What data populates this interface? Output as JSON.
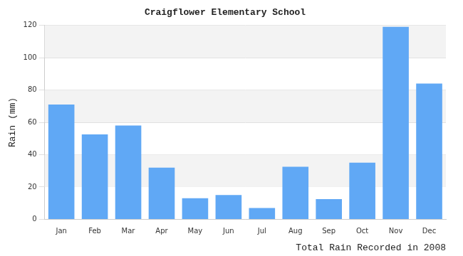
{
  "chart_data": {
    "type": "bar",
    "title": "Craigflower Elementary School",
    "x_label": "Total Rain Recorded in 2008",
    "y_label": "Rain (mm)",
    "categories": [
      "Jan",
      "Feb",
      "Mar",
      "Apr",
      "May",
      "Jun",
      "Jul",
      "Aug",
      "Sep",
      "Oct",
      "Nov",
      "Dec"
    ],
    "values": [
      71,
      52.5,
      58,
      32,
      13,
      15,
      7,
      32.5,
      12.5,
      35,
      119,
      84
    ],
    "color": "#60a8f5",
    "ylim": [
      0,
      120
    ],
    "yticks": [
      0,
      20,
      40,
      60,
      80,
      100,
      120
    ],
    "grid": true
  }
}
